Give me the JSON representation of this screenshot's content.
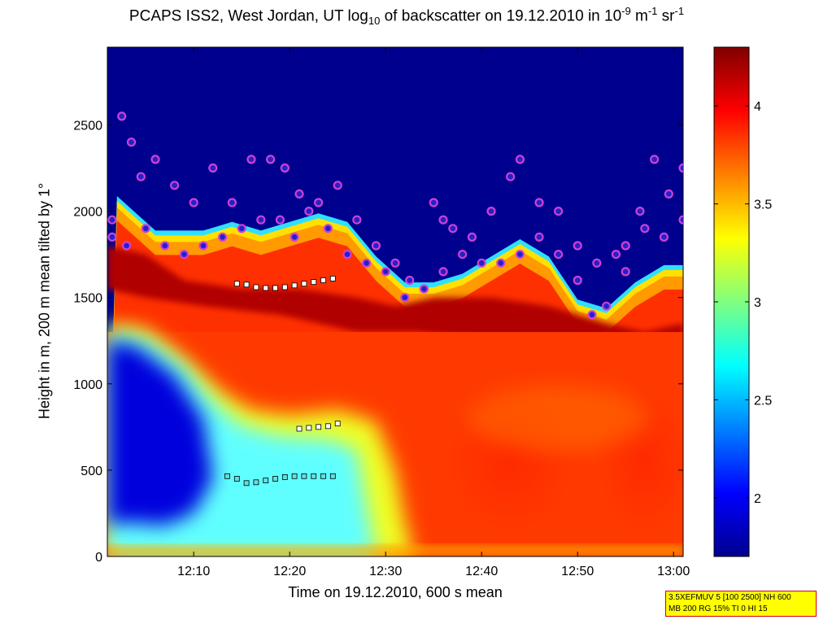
{
  "chart_data": {
    "type": "heatmap",
    "title_parts": {
      "t1": "PCAPS ISS2, West Jordan, UT log",
      "sub": "10",
      "t2": " of backscatter on 19.12.2010 in 10",
      "sup1": "-9",
      "t3": " m",
      "sup2": "-1",
      "t4": " sr",
      "sup3": "-1"
    },
    "xlabel": "Time on 19.12.2010, 600 s mean",
    "ylabel": "Height in m, 200 m mean tilted by 1°",
    "xlim": [
      "12:01",
      "13:01"
    ],
    "ylim": [
      0,
      2950
    ],
    "x_ticks": [
      "12:10",
      "12:20",
      "12:30",
      "12:40",
      "12:50",
      "13:00"
    ],
    "y_ticks": [
      "0",
      "500",
      "1000",
      "1500",
      "2000",
      "2500"
    ],
    "colorbar": {
      "range": [
        1.7,
        4.3
      ],
      "ticks": [
        "2",
        "2.5",
        "3",
        "3.5",
        "4"
      ]
    },
    "colors": {
      "low": "#00008f",
      "high": "#800000",
      "marker_magenta": "#d040d0",
      "marker_blue": "#2222cc"
    },
    "aerosol_top": {
      "t": [
        1,
        3,
        5,
        8,
        10,
        13,
        16,
        19,
        22,
        25,
        28,
        31,
        34,
        37,
        40,
        43,
        46,
        49,
        52,
        55,
        58,
        60
      ],
      "h": [
        2050,
        1950,
        1850,
        1850,
        1850,
        1900,
        1850,
        1900,
        1950,
        1900,
        1700,
        1550,
        1550,
        1600,
        1700,
        1800,
        1700,
        1450,
        1400,
        1550,
        1650,
        1650
      ]
    },
    "upper_layer_markers": {
      "t": [
        0.5,
        1.5,
        2.5,
        3.5,
        5,
        7,
        9,
        11,
        13,
        15,
        17,
        18.5,
        20,
        22,
        24,
        26,
        28,
        30,
        31.5,
        33,
        34,
        35,
        36,
        38,
        40,
        42,
        43,
        45,
        47,
        49,
        51,
        53,
        54,
        55.5,
        57,
        58.5,
        60
      ],
      "h": [
        1950,
        2550,
        2400,
        2200,
        2300,
        2150,
        2050,
        2250,
        2050,
        2300,
        2300,
        2250,
        2100,
        2050,
        2150,
        1950,
        1800,
        1700,
        1600,
        1550,
        2050,
        1950,
        1900,
        1850,
        2000,
        2200,
        2300,
        2050,
        2000,
        1800,
        1700,
        1750,
        1650,
        2000,
        2300,
        2100,
        2250
      ]
    },
    "lower_layer_markers": {
      "t": [
        0.5,
        2,
        4,
        6,
        8,
        10,
        12,
        14,
        16,
        18,
        19.5,
        21,
        23,
        25,
        27,
        29,
        31,
        33,
        35,
        37,
        39,
        41,
        43,
        45,
        47,
        49,
        50.5,
        52,
        54,
        56,
        58,
        60
      ],
      "h": [
        1850,
        1800,
        1900,
        1800,
        1750,
        1800,
        1850,
        1900,
        1950,
        1950,
        1850,
        2000,
        1900,
        1750,
        1700,
        1650,
        1500,
        1550,
        1650,
        1750,
        1700,
        1700,
        1750,
        1850,
        1750,
        1600,
        1400,
        1450,
        1800,
        1900,
        1850,
        1950
      ]
    },
    "boundary_squares": {
      "t": [
        12.5,
        13.5,
        14.5,
        15.5,
        16.5,
        17.5,
        18.5,
        19.5,
        20.5,
        21.5,
        22.5,
        23.5
      ],
      "h": [
        465,
        450,
        425,
        430,
        440,
        450,
        460,
        465,
        465,
        465,
        465,
        465
      ]
    },
    "upper_squares": {
      "t": [
        13.5,
        14.5,
        15.5,
        16.5,
        17.5,
        18.5,
        19.5,
        20.5,
        21.5,
        22.5,
        23.5
      ],
      "h": [
        1580,
        1575,
        1560,
        1555,
        1555,
        1560,
        1570,
        1580,
        1590,
        1600,
        1610
      ]
    },
    "mid_squares": {
      "t": [
        20,
        21,
        22,
        23,
        24
      ],
      "h": [
        740,
        745,
        750,
        755,
        770
      ]
    }
  },
  "info_box": {
    "line1": "3.5XEFMUV 5 [100 2500] NH 600",
    "line2": "MB 200 RG 15% TI 0 HI 15"
  }
}
